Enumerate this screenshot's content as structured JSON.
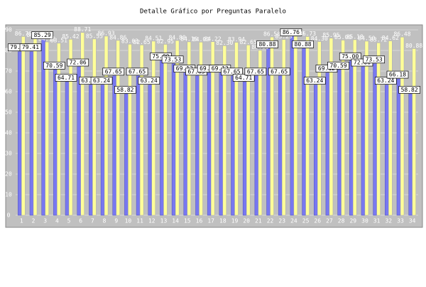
{
  "chart_data": {
    "type": "bar",
    "title": "Detalle Gráfico por Preguntas Paralelo",
    "categories": [
      "1",
      "2",
      "3",
      "4",
      "5",
      "6",
      "7",
      "8",
      "9",
      "10",
      "11",
      "12",
      "13",
      "14",
      "15",
      "16",
      "17",
      "18",
      "19",
      "20",
      "21",
      "22",
      "23",
      "24",
      "25",
      "26",
      "27",
      "28",
      "29",
      "30",
      "31",
      "32",
      "33",
      "34"
    ],
    "series": [
      {
        "color": "#7878f0",
        "values": [
          79.41,
          79.41,
          85.29,
          70.59,
          64.71,
          72.06,
          63.24,
          63.24,
          67.65,
          58.82,
          67.65,
          63.24,
          75.0,
          73.53,
          69.12,
          67.65,
          69.12,
          69.12,
          67.65,
          64.71,
          67.65,
          80.88,
          67.65,
          86.76,
          80.88,
          63.24,
          69.12,
          70.59,
          75.0,
          72.06,
          73.53,
          63.24,
          66.18,
          58.82
        ],
        "value_labels": [
          "79.41",
          "79.41",
          "85.29",
          "70.59",
          "64.71",
          "72.06",
          "63.24",
          "63.24",
          "67.65",
          "58.82",
          "67.65",
          "63.24",
          "75.00",
          "73.53",
          "69.12",
          "67.65",
          "69.12",
          "69.12",
          "67.65",
          "64.71",
          "67.65",
          "80.88",
          "67.65",
          "86.76",
          "80.88",
          "63.24",
          "69.12",
          "70.59",
          "75.00",
          "72.06",
          "73.53",
          "63.24",
          "66.18",
          "58.82"
        ]
      },
      {
        "color": "#ffff99",
        "values": [
          86.76,
          86.03,
          84.11,
          83.51,
          85.42,
          88.71,
          85.55,
          86.93,
          84.86,
          83.03,
          82.65,
          84.51,
          82.95,
          84.8,
          84.16,
          84.03,
          84.22,
          82.3,
          83.94,
          82.65,
          80.11,
          86.5,
          85.29,
          86.9,
          86.73,
          84.3,
          85.95,
          85.0,
          85.18,
          84.5,
          83.72,
          84.62,
          86.48,
          80.88
        ],
        "value_labels": [
          "86.76",
          "86.03",
          "84.11",
          "83.51",
          "85.42",
          "88.71",
          "85.55",
          "86.93",
          "84.86",
          "83.03",
          "82.65",
          "84.51",
          "82.95",
          "84.80",
          "84.16",
          "84.03",
          "84.22",
          "82.30",
          "83.94",
          "82.65",
          "80.11",
          "86.50",
          "85.29",
          "86.90",
          "86.73",
          "84.30",
          "85.95",
          "85.00",
          "85.18",
          "84.50",
          "83.72",
          "84.62",
          "86.48",
          "80.88"
        ]
      }
    ],
    "ylim": [
      0,
      90
    ],
    "yticks": [
      0,
      10,
      20,
      30,
      40,
      50,
      60,
      70,
      80,
      90
    ],
    "grid": true
  }
}
